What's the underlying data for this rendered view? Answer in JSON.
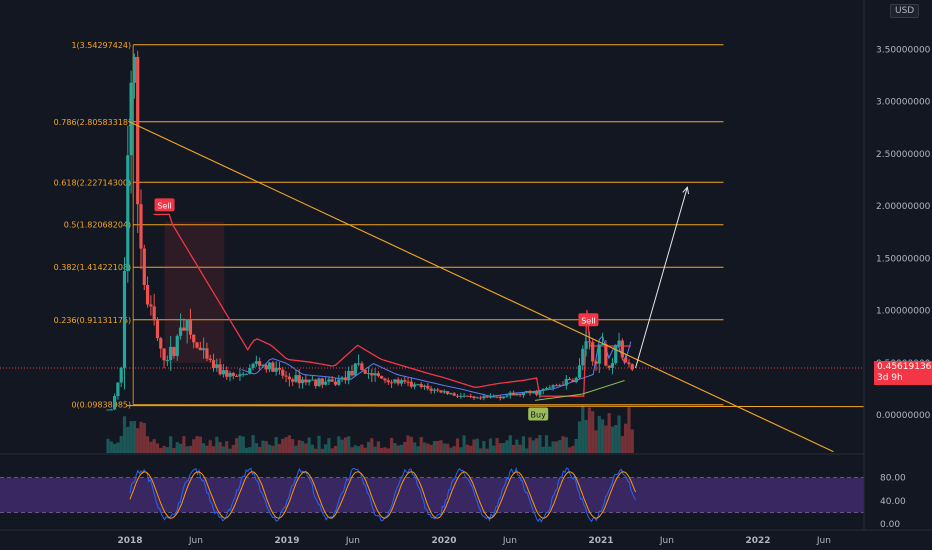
{
  "currency": "USD",
  "last_price": "0.45619136",
  "countdown": "3d 9h",
  "price_axis": {
    "ticks": [
      {
        "value": 3.5,
        "label": "3.50000000"
      },
      {
        "value": 3.0,
        "label": "3.00000000"
      },
      {
        "value": 2.5,
        "label": "2.50000000"
      },
      {
        "value": 2.0,
        "label": "2.00000000"
      },
      {
        "value": 1.5,
        "label": "1.50000000"
      },
      {
        "value": 1.0,
        "label": "1.00000000"
      },
      {
        "value": 0.5,
        "label": "0.50000000"
      },
      {
        "value": 0.0,
        "label": "0.00000000"
      }
    ]
  },
  "time_axis": {
    "ticks": [
      {
        "t": 2018.0,
        "label": "2018"
      },
      {
        "t": 2018.42,
        "label": "Jun"
      },
      {
        "t": 2019.0,
        "label": "2019"
      },
      {
        "t": 2019.42,
        "label": "Jun"
      },
      {
        "t": 2020.0,
        "label": "2020"
      },
      {
        "t": 2020.42,
        "label": "Jun"
      },
      {
        "t": 2021.0,
        "label": "2021"
      },
      {
        "t": 2021.42,
        "label": "Jun"
      },
      {
        "t": 2022.0,
        "label": "2022"
      },
      {
        "t": 2022.42,
        "label": "Jun"
      }
    ]
  },
  "fib_levels": [
    {
      "level": 1,
      "price": 3.54297424,
      "label": "1(3.54297424)"
    },
    {
      "level": 0.786,
      "price": 2.80583318,
      "label": "0.786(2.80583318)"
    },
    {
      "level": 0.618,
      "price": 2.227143,
      "label": "0.618(2.22714300)"
    },
    {
      "level": 0.5,
      "price": 1.82068204,
      "label": "0.5(1.82068204)"
    },
    {
      "level": 0.382,
      "price": 1.41422108,
      "label": "0.382(1.41422108)"
    },
    {
      "level": 0.236,
      "price": 0.91131176,
      "label": "0.236(0.91131176)"
    },
    {
      "level": 0,
      "price": 0.09838985,
      "label": "0(0.09838985)"
    }
  ],
  "signals": [
    {
      "type": "sell",
      "label": "Sell",
      "t": 2018.22,
      "price": 1.92
    },
    {
      "type": "sell",
      "label": "Sell",
      "t": 2020.92,
      "price": 0.82
    },
    {
      "type": "buy",
      "label": "Buy",
      "t": 2020.6,
      "price": 0.1
    }
  ],
  "oscillator": {
    "ticks": [
      {
        "value": 80,
        "label": "80.00"
      },
      {
        "value": 40,
        "label": "40.00"
      },
      {
        "value": 0,
        "label": "0.00"
      }
    ],
    "upper_band": 80,
    "lower_band": 20
  },
  "colors": {
    "background": "#131722",
    "fib": "#f5a623",
    "up": "#26a69a",
    "down": "#ef5350",
    "trail": "#f23645",
    "ma": "#5b7cfa",
    "buy_line": "#8bc34a",
    "osc_k": "#2962ff",
    "osc_d": "#ff9800",
    "osc_band": "#3f2a6b"
  },
  "chart_data": {
    "type": "candlestick",
    "symbol_currency": "USD",
    "x_range": [
      2017.8,
      2022.55
    ],
    "y_range": [
      -0.36,
      3.9
    ],
    "price_path": [
      [
        2017.88,
        0.05
      ],
      [
        2017.95,
        0.45
      ],
      [
        2017.99,
        2.8
      ],
      [
        2018.02,
        3.54
      ],
      [
        2018.05,
        2.0
      ],
      [
        2018.1,
        1.1
      ],
      [
        2018.15,
        0.9
      ],
      [
        2018.2,
        0.55
      ],
      [
        2018.28,
        0.6
      ],
      [
        2018.33,
        0.95
      ],
      [
        2018.4,
        0.7
      ],
      [
        2018.5,
        0.5
      ],
      [
        2018.6,
        0.4
      ],
      [
        2018.7,
        0.35
      ],
      [
        2018.8,
        0.5
      ],
      [
        2018.9,
        0.45
      ],
      [
        2019.0,
        0.35
      ],
      [
        2019.15,
        0.33
      ],
      [
        2019.3,
        0.3
      ],
      [
        2019.45,
        0.45
      ],
      [
        2019.6,
        0.35
      ],
      [
        2019.75,
        0.3
      ],
      [
        2019.9,
        0.25
      ],
      [
        2020.0,
        0.22
      ],
      [
        2020.2,
        0.15
      ],
      [
        2020.35,
        0.18
      ],
      [
        2020.5,
        0.2
      ],
      [
        2020.6,
        0.22
      ],
      [
        2020.75,
        0.3
      ],
      [
        2020.85,
        0.35
      ],
      [
        2020.9,
        0.75
      ],
      [
        2020.95,
        0.5
      ],
      [
        2021.0,
        0.65
      ],
      [
        2021.05,
        0.45
      ],
      [
        2021.1,
        0.7
      ],
      [
        2021.15,
        0.5
      ],
      [
        2021.2,
        0.45
      ]
    ],
    "trendline_start": {
      "t": 2017.99,
      "price": 2.81
    },
    "trendline_end": {
      "t": 2022.48,
      "price": -0.35
    },
    "projection_arrow": {
      "from": {
        "t": 2021.22,
        "price": 0.45
      },
      "to": {
        "t": 2021.55,
        "price": 2.18
      }
    }
  }
}
